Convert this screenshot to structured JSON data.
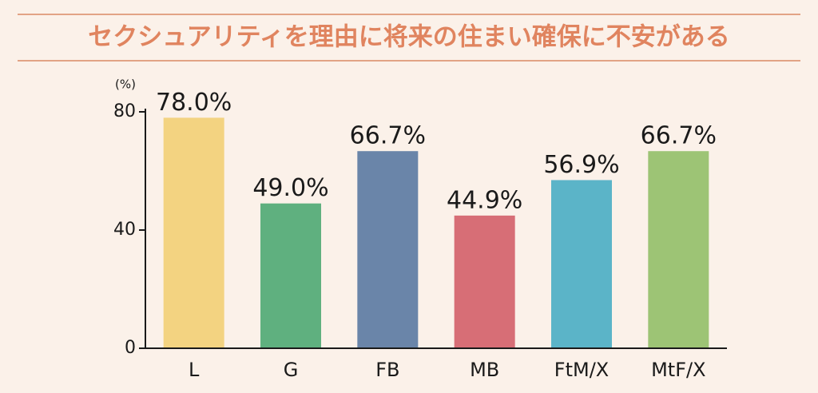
{
  "chart_data": {
    "type": "bar",
    "title": "セクシュアリティを理由に将来の住まい確保に不安がある",
    "y_unit": "(%)",
    "categories": [
      "L",
      "G",
      "FB",
      "MB",
      "FtM/X",
      "MtF/X"
    ],
    "values": [
      78.0,
      49.0,
      66.7,
      44.9,
      56.9,
      66.7
    ],
    "value_labels": [
      "78.0%",
      "49.0%",
      "66.7%",
      "44.9%",
      "56.9%",
      "66.7%"
    ],
    "colors": [
      "#f3d381",
      "#5fb07f",
      "#6a85a9",
      "#d76e76",
      "#5bb4c8",
      "#9dc475"
    ],
    "ylim": [
      0,
      80
    ],
    "yticks": [
      0,
      40,
      80
    ],
    "grid": false
  }
}
